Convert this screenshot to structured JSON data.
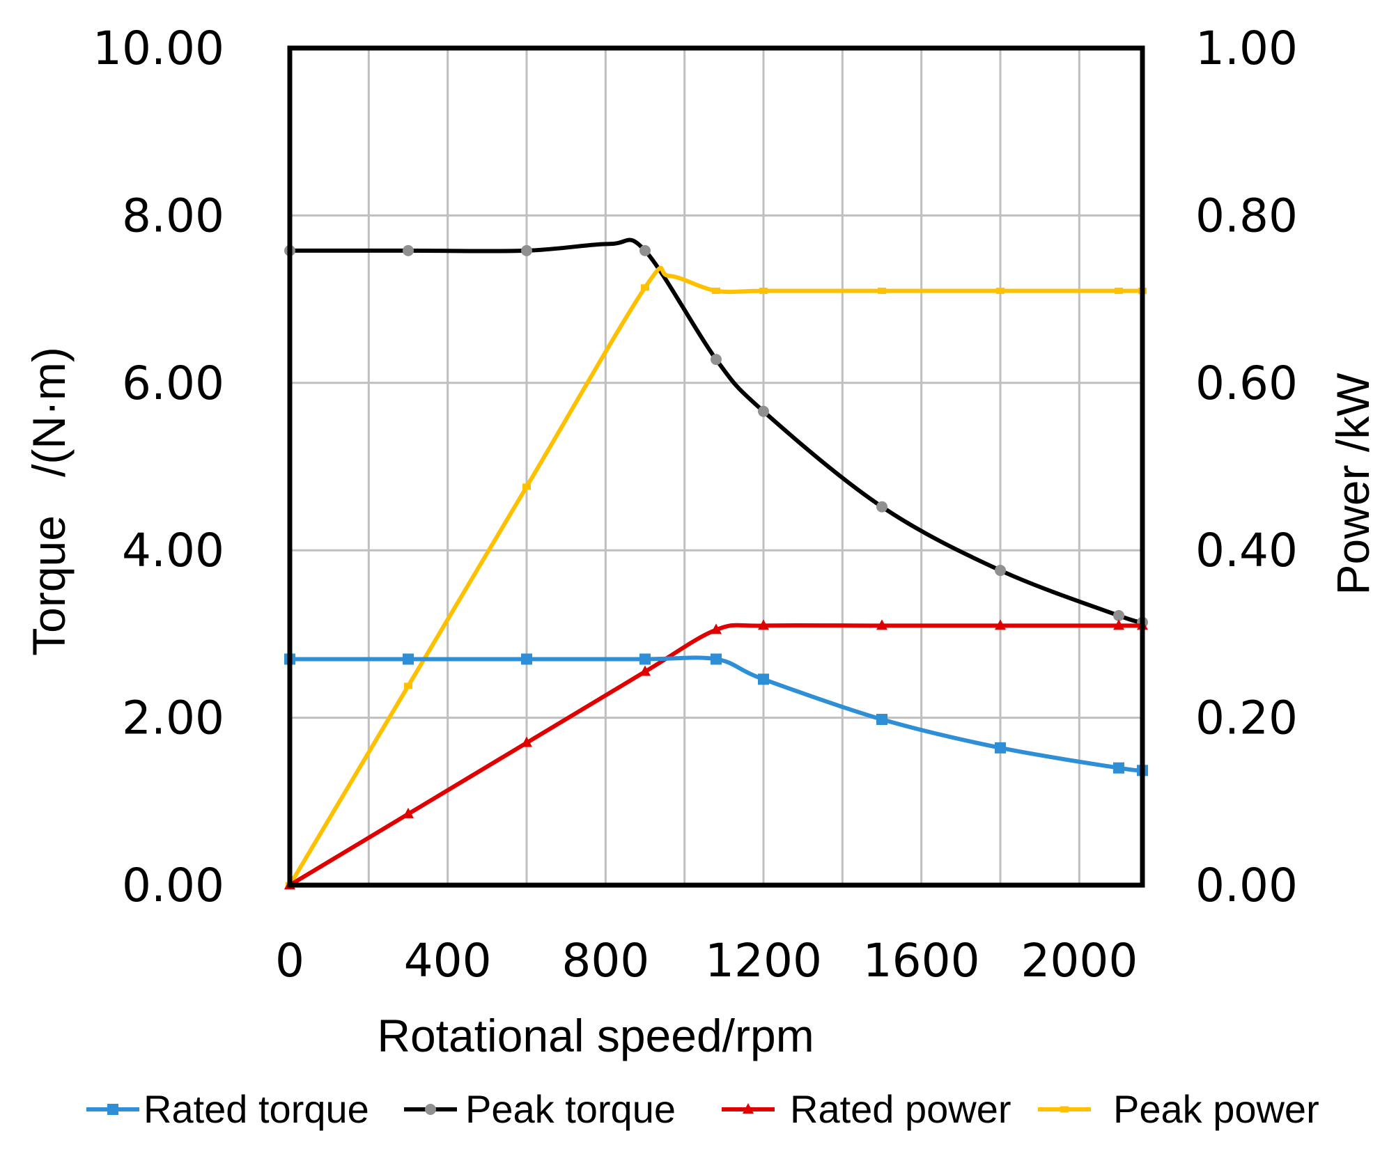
{
  "chart_data": {
    "type": "line",
    "xlabel": "Rotational speed/rpm",
    "ylabel_left": "Torque   /(N·m)",
    "ylabel_right": "Power /kW",
    "xlim": [
      0,
      2160
    ],
    "ylim_left": [
      0,
      10
    ],
    "ylim_right": [
      0,
      1
    ],
    "x_ticks": [
      "0",
      "400",
      "800",
      "1200",
      "1600",
      "2000"
    ],
    "y_left_ticks": [
      "0.00",
      "2.00",
      "4.00",
      "6.00",
      "8.00",
      "10.00"
    ],
    "y_right_ticks": [
      "0.00",
      "0.20",
      "0.40",
      "0.60",
      "0.80",
      "1.00"
    ],
    "grid": true,
    "legend_position": "bottom",
    "series": [
      {
        "name": "Rated torque",
        "axis": "left",
        "color": "#2f8fd6",
        "marker": "square",
        "x": [
          0,
          300,
          600,
          900,
          1080,
          1200,
          1500,
          1800,
          2100,
          2160
        ],
        "y": [
          2.7,
          2.7,
          2.7,
          2.7,
          2.7,
          2.46,
          1.98,
          1.64,
          1.4,
          1.37
        ]
      },
      {
        "name": "Peak torque",
        "axis": "left",
        "color": "#000000",
        "marker": "circle",
        "x": [
          0,
          300,
          600,
          810,
          900,
          1080,
          1200,
          1500,
          1800,
          2100,
          2160
        ],
        "y": [
          7.58,
          7.58,
          7.58,
          7.66,
          7.58,
          6.28,
          5.66,
          4.52,
          3.76,
          3.22,
          3.14
        ]
      },
      {
        "name": "Rated power",
        "axis": "right",
        "color": "#e00000",
        "marker": "triangle",
        "x": [
          0,
          300,
          600,
          900,
          1080,
          1200,
          1500,
          1800,
          2100,
          2160
        ],
        "y": [
          0.0,
          0.085,
          0.17,
          0.255,
          0.305,
          0.31,
          0.31,
          0.31,
          0.31,
          0.31
        ]
      },
      {
        "name": "Peak power",
        "axis": "right",
        "color": "#ffc000",
        "marker": "dash",
        "x": [
          0,
          300,
          600,
          900,
          960,
          1080,
          1200,
          1500,
          1800,
          2100,
          2160
        ],
        "y": [
          0.0,
          0.238,
          0.476,
          0.714,
          0.728,
          0.71,
          0.71,
          0.71,
          0.71,
          0.71,
          0.71
        ]
      }
    ]
  }
}
